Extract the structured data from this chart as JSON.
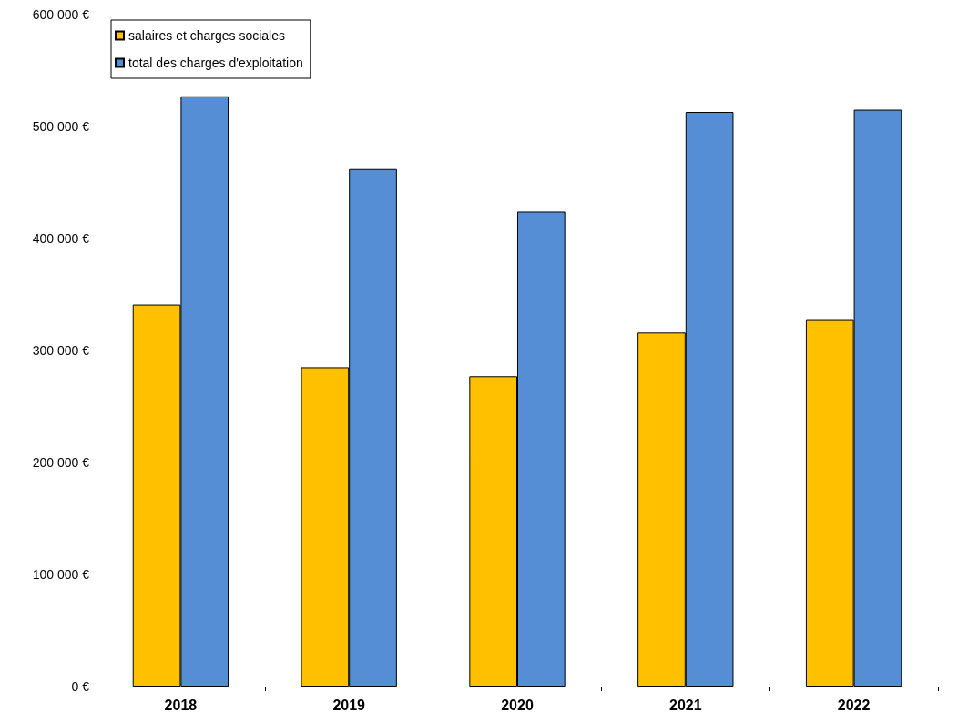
{
  "chart_data": {
    "type": "bar",
    "categories": [
      "2018",
      "2019",
      "2020",
      "2021",
      "2022"
    ],
    "series": [
      {
        "name": "salaires et charges sociales",
        "color": "#ffc000",
        "values": [
          341000,
          285000,
          277000,
          316000,
          328000
        ]
      },
      {
        "name": "total des charges d'exploitation",
        "color": "#558ed5",
        "values": [
          527000,
          462000,
          424000,
          513000,
          515000
        ]
      }
    ],
    "ylim": [
      0,
      600000
    ],
    "yticks": [
      {
        "value": 0,
        "label": "0 €"
      },
      {
        "value": 100000,
        "label": "100 000 €"
      },
      {
        "value": 200000,
        "label": "200 000 €"
      },
      {
        "value": 300000,
        "label": "300 000 €"
      },
      {
        "value": 400000,
        "label": "400 000 €"
      },
      {
        "value": 500000,
        "label": "500 000 €"
      },
      {
        "value": 600000,
        "label": "600 000 €"
      }
    ],
    "grid": "y",
    "legend": "top left"
  }
}
